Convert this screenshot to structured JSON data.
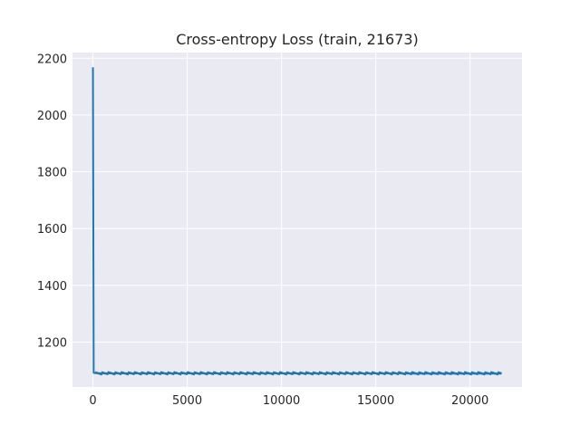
{
  "chart_data": {
    "type": "line",
    "title": "Cross-entropy Loss (train, 21673)",
    "xlabel": "",
    "ylabel": "",
    "xlim": [
      -1083.65,
      22756.65
    ],
    "ylim": [
      1042,
      2220
    ],
    "x_ticks": [
      0,
      5000,
      10000,
      15000,
      20000
    ],
    "x_tick_labels": [
      "0",
      "5000",
      "10000",
      "15000",
      "20000"
    ],
    "y_ticks": [
      1200,
      1400,
      1600,
      1800,
      2000,
      2200
    ],
    "y_tick_labels": [
      "1200",
      "1400",
      "1600",
      "1800",
      "2000",
      "2200"
    ],
    "grid": true,
    "style": "seaborn-darkgrid",
    "background_color": "#EAEAF2",
    "grid_color": "#FFFFFF",
    "series": [
      {
        "color": "#1F77B4",
        "x": [
          0,
          40,
          80,
          120,
          500,
          1000,
          2000,
          3000,
          4000,
          5000,
          6000,
          7000,
          8000,
          9000,
          10000,
          11000,
          12000,
          13000,
          14000,
          15000,
          16000,
          17000,
          18000,
          19000,
          20000,
          21000,
          21673
        ],
        "y": [
          2168,
          1092,
          1091,
          1091,
          1090,
          1090,
          1090,
          1090,
          1090,
          1090,
          1090,
          1090,
          1090,
          1090,
          1090,
          1090,
          1090,
          1090,
          1090,
          1090,
          1090,
          1089,
          1089,
          1089,
          1089,
          1089,
          1089
        ]
      }
    ]
  }
}
